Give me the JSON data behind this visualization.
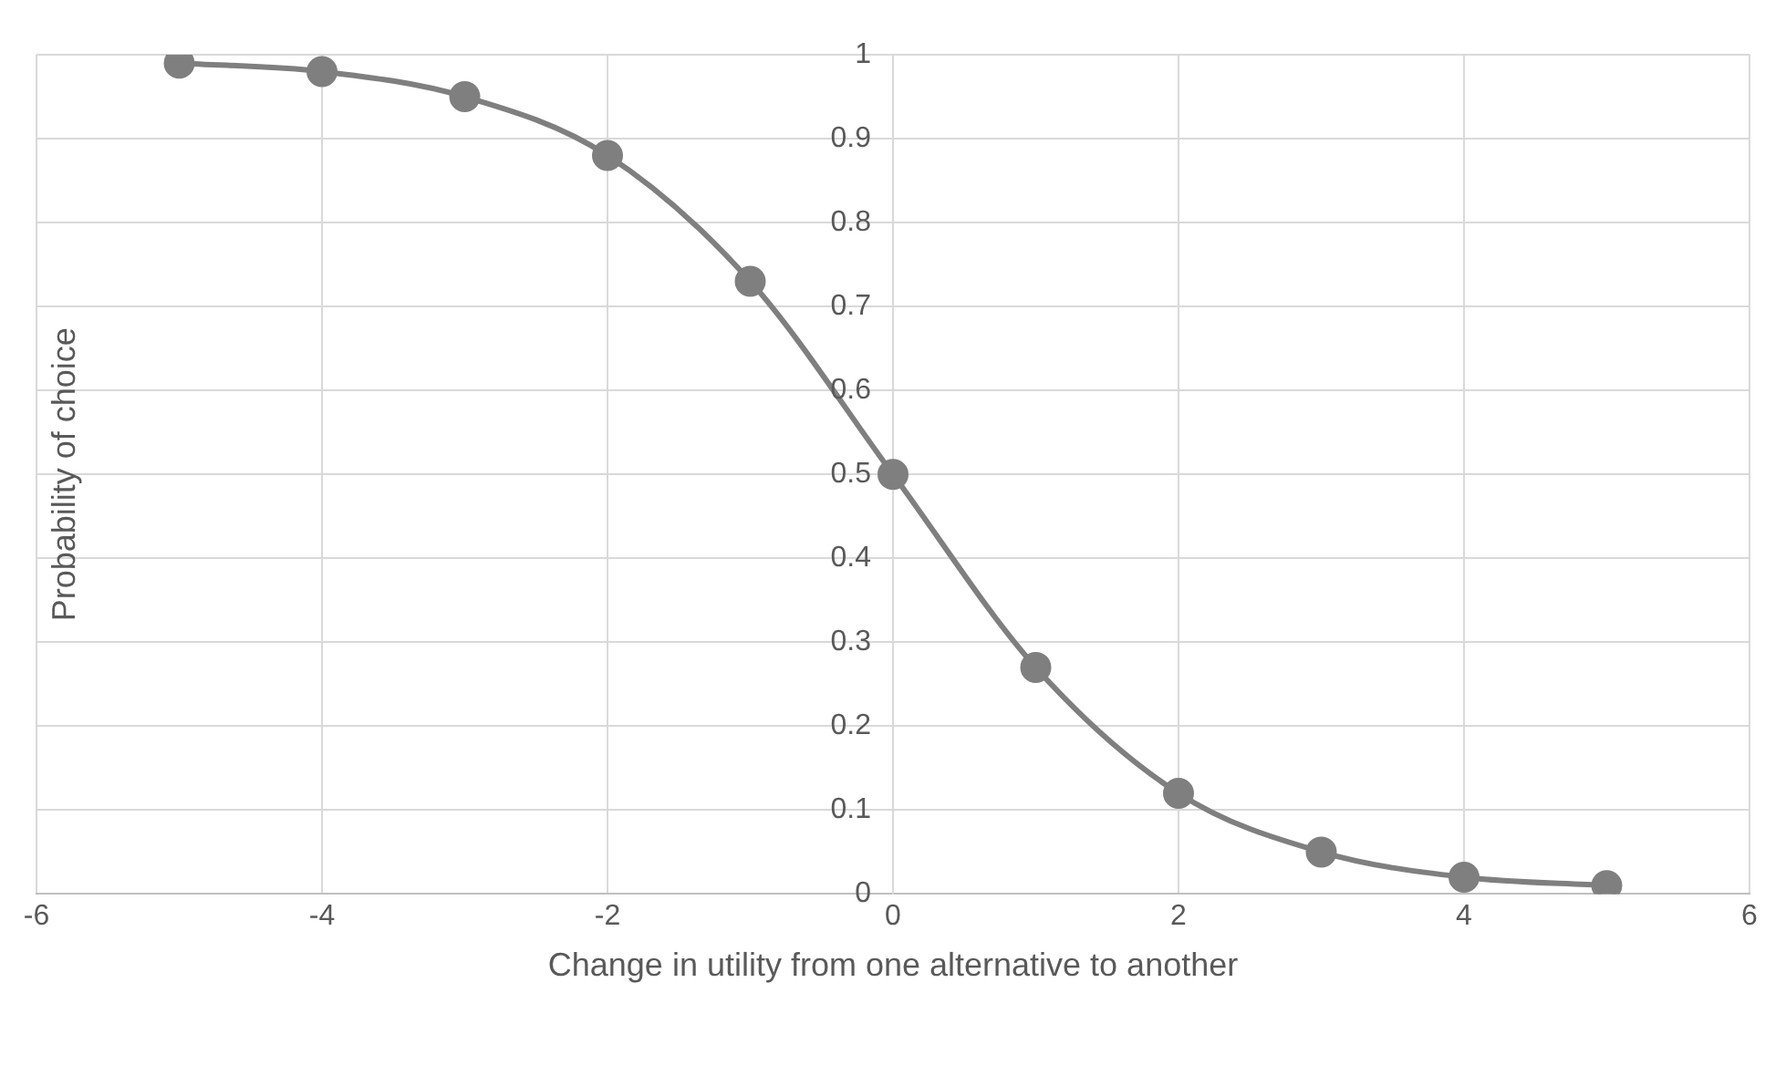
{
  "chart_data": {
    "type": "line",
    "xlabel": "Change in utility from one alternative to another",
    "ylabel": "Probability of choice",
    "x": [
      -5,
      -4,
      -3,
      -2,
      -1,
      0,
      1,
      2,
      3,
      4,
      5
    ],
    "values": [
      0.99,
      0.98,
      0.95,
      0.88,
      0.73,
      0.5,
      0.27,
      0.12,
      0.05,
      0.02,
      0.01
    ],
    "color": "#7f7f7f",
    "marker": "circle",
    "xlim": [
      -6,
      6
    ],
    "xticks": [
      -6,
      -4,
      -2,
      0,
      2,
      4,
      6
    ],
    "ylim": [
      0,
      1
    ],
    "yticks": [
      0,
      0.1,
      0.2,
      0.3,
      0.4,
      0.5,
      0.6,
      0.7,
      0.8,
      0.9,
      1
    ],
    "grid": true
  }
}
